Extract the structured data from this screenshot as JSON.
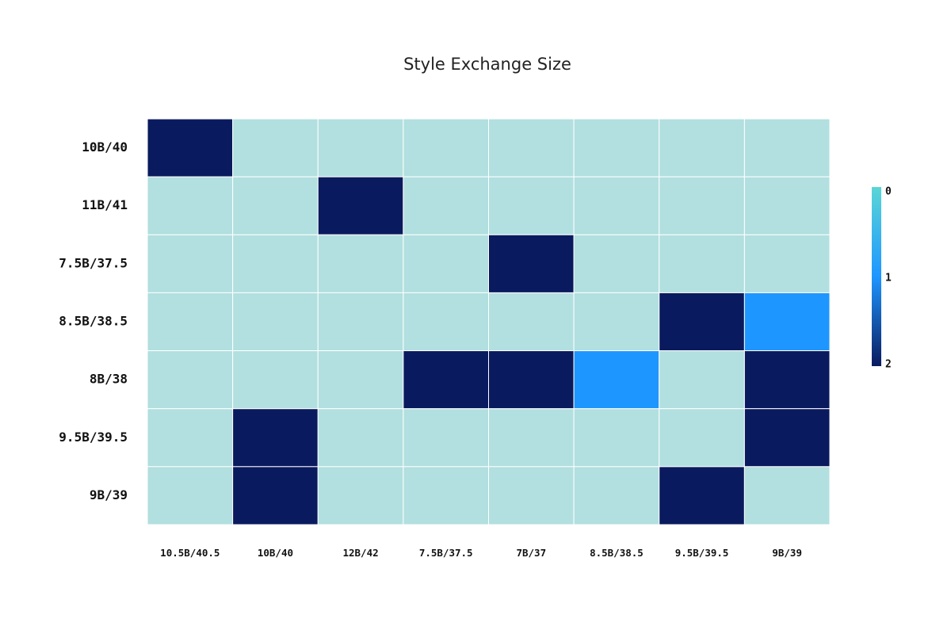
{
  "chart_data": {
    "type": "heatmap",
    "title": "Style Exchange Size",
    "xlabel": "",
    "ylabel": "",
    "x_categories": [
      "10.5B/40.5",
      "10B/40",
      "12B/42",
      "7.5B/37.5",
      "7B/37",
      "8.5B/38.5",
      "9.5B/39.5",
      "9B/39"
    ],
    "y_categories": [
      "10B/40",
      "11B/41",
      "7.5B/37.5",
      "8.5B/38.5",
      "8B/38",
      "9.5B/39.5",
      "9B/39"
    ],
    "values": [
      [
        2,
        0,
        0,
        0,
        0,
        0,
        0,
        0
      ],
      [
        0,
        0,
        2,
        0,
        0,
        0,
        0,
        0
      ],
      [
        0,
        0,
        0,
        0,
        2,
        0,
        0,
        0
      ],
      [
        0,
        0,
        0,
        0,
        0,
        0,
        2,
        1
      ],
      [
        0,
        0,
        0,
        2,
        2,
        1,
        0,
        2
      ],
      [
        0,
        2,
        0,
        0,
        0,
        0,
        0,
        2
      ],
      [
        0,
        2,
        0,
        0,
        0,
        0,
        2,
        0
      ]
    ],
    "colorscale": {
      "min": 0,
      "max": 2,
      "stops": [
        {
          "value": 0,
          "color": "#b2dfdf",
          "bar_color": "#5ad6d6"
        },
        {
          "value": 1,
          "color": "#1e96ff"
        },
        {
          "value": 2,
          "color": "#0a1a5e"
        }
      ],
      "ticks": [
        "0",
        "1",
        "2"
      ]
    },
    "grid_line_color": "#ffffff"
  }
}
